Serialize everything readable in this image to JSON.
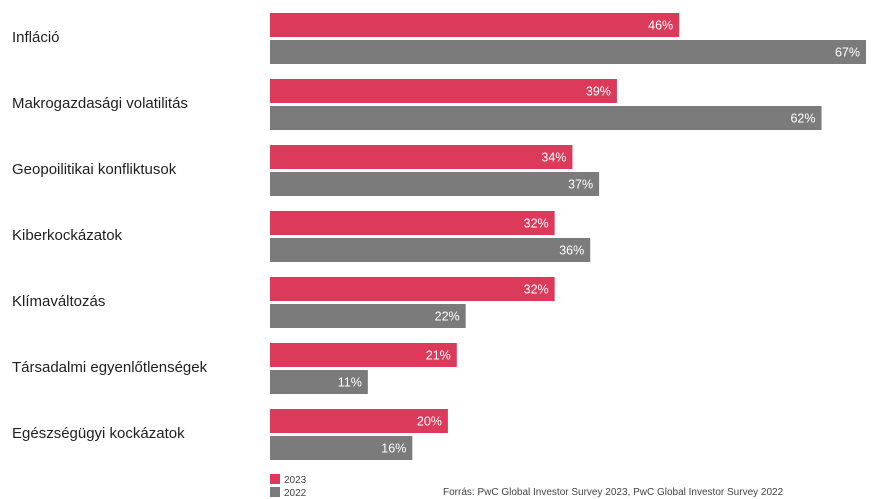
{
  "chart_data": {
    "type": "bar",
    "orientation": "horizontal",
    "categories": [
      "Infláció",
      "Makrogazdasági volatilitás",
      "Geopoilitikai konfliktusok",
      "Kiberkockázatok",
      "Klímaváltozás",
      "Társadalmi egyenlőtlenségek",
      "Egészségügyi kockázatok"
    ],
    "series": [
      {
        "name": "2023",
        "color": "#dc3a5a",
        "values": [
          46,
          39,
          34,
          32,
          32,
          21,
          20
        ]
      },
      {
        "name": "2022",
        "color": "#7b7b7b",
        "values": [
          67,
          62,
          37,
          36,
          22,
          11,
          16
        ]
      }
    ],
    "value_suffix": "%",
    "xlim": [
      0,
      67
    ],
    "grid": false,
    "legend_position": "bottom-left"
  },
  "source": "Forrás: PwC Global Investor Survey 2023, PwC Global Investor Survey 2022"
}
